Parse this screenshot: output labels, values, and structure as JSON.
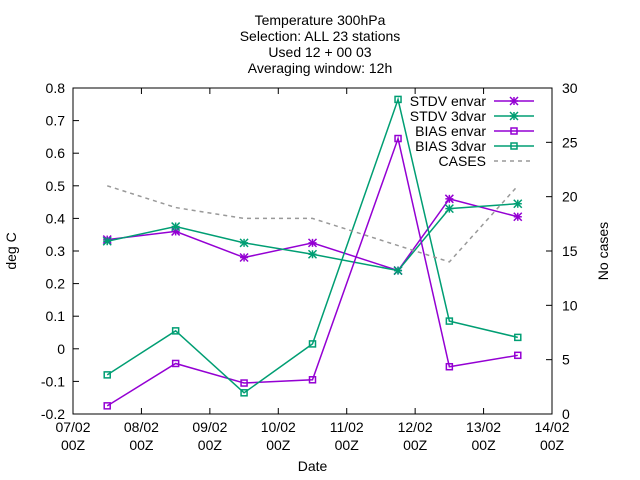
{
  "chart_data": {
    "type": "line",
    "title_lines": [
      "Temperature 300hPa",
      "Selection: ALL      23 stations",
      "Used 12 + 00 03",
      "Averaging window: 12h"
    ],
    "xlabel": "Date",
    "ylabel": "deg C",
    "y2label": "No cases",
    "x_ticks": [
      "07/02",
      "08/02",
      "09/02",
      "10/02",
      "11/02",
      "12/02",
      "13/02",
      "14/02"
    ],
    "x_tick_sub": "00Z",
    "xlim": [
      0,
      7
    ],
    "ylim": [
      -0.2,
      0.8
    ],
    "y_ticks": [
      -0.2,
      -0.1,
      0,
      0.1,
      0.2,
      0.3,
      0.4,
      0.5,
      0.6,
      0.7,
      0.8
    ],
    "y2lim": [
      0,
      30
    ],
    "y2_ticks": [
      0,
      5,
      10,
      15,
      20,
      25,
      30
    ],
    "x_values": [
      0.5,
      1.5,
      2.5,
      3.5,
      4.75,
      5.5,
      6.5
    ],
    "grid": false,
    "legend_position": "top-right",
    "series": [
      {
        "name": "STDV envar",
        "axis": "y",
        "color": "#9400d3",
        "marker": "x",
        "values": [
          0.335,
          0.36,
          0.28,
          0.325,
          0.24,
          0.46,
          0.405
        ]
      },
      {
        "name": "STDV 3dvar",
        "axis": "y",
        "color": "#009e73",
        "marker": "x",
        "values": [
          0.33,
          0.375,
          0.325,
          0.29,
          0.24,
          0.43,
          0.445
        ]
      },
      {
        "name": "BIAS envar",
        "axis": "y",
        "color": "#9400d3",
        "marker": "square",
        "values": [
          -0.175,
          -0.045,
          -0.105,
          -0.095,
          0.645,
          -0.055,
          -0.02
        ]
      },
      {
        "name": "BIAS 3dvar",
        "axis": "y",
        "color": "#009e73",
        "marker": "square",
        "values": [
          -0.08,
          0.055,
          -0.135,
          0.015,
          0.765,
          0.085,
          0.035
        ]
      },
      {
        "name": "CASES",
        "axis": "y2",
        "color": "#999999",
        "marker": "none",
        "dash": true,
        "values": [
          21,
          19,
          18,
          18,
          15.5,
          14,
          21
        ]
      }
    ]
  }
}
